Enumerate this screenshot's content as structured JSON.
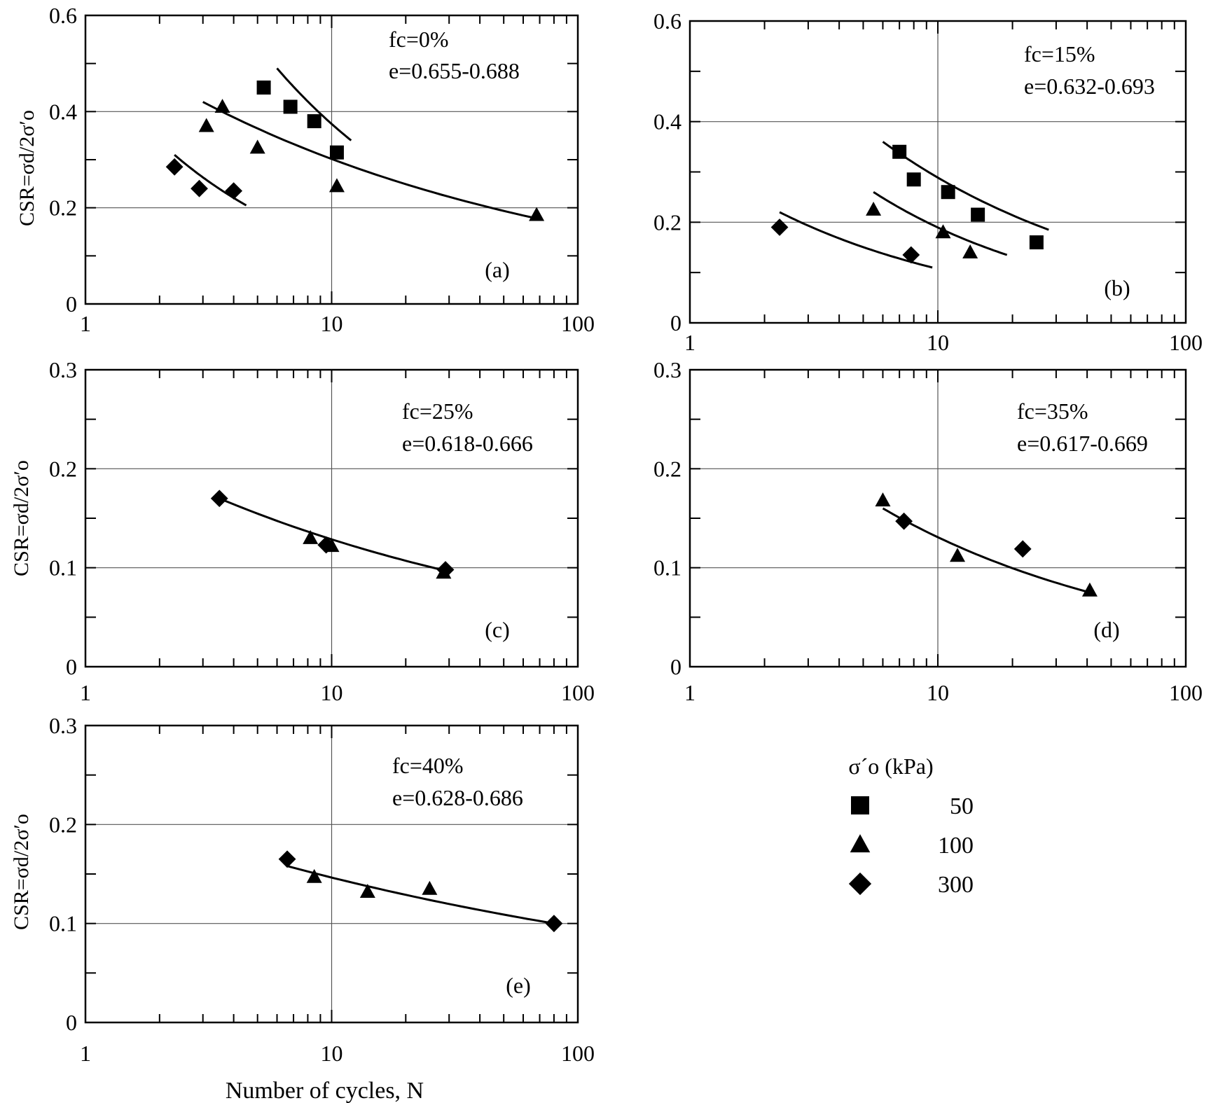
{
  "chart_data": [
    {
      "id": "a",
      "type": "scatter",
      "x_scale": "log",
      "xlim": [
        1,
        100
      ],
      "ylim": [
        0,
        0.6
      ],
      "x_ticks": [
        "1",
        "10",
        "100"
      ],
      "y_ticks": [
        "0",
        "0.2",
        "0.4",
        "0.6"
      ],
      "ylabel": "CSR=σd/2σ′o",
      "annotation": [
        "fc=0%",
        "e=0.655-0.688"
      ],
      "panel_label": "(a)",
      "series": [
        {
          "sigma": "50",
          "marker": "square",
          "points": [
            [
              5.3,
              0.45
            ],
            [
              6.8,
              0.41
            ],
            [
              8.5,
              0.38
            ],
            [
              10.5,
              0.315
            ]
          ],
          "fit": [
            [
              6.0,
              0.49
            ],
            [
              12.0,
              0.34
            ]
          ]
        },
        {
          "sigma": "100",
          "marker": "triangle",
          "points": [
            [
              3.1,
              0.37
            ],
            [
              3.6,
              0.41
            ],
            [
              5.0,
              0.325
            ],
            [
              10.5,
              0.245
            ],
            [
              68,
              0.185
            ]
          ],
          "fit": [
            [
              3.0,
              0.42
            ],
            [
              65,
              0.18
            ]
          ]
        },
        {
          "sigma": "300",
          "marker": "diamond",
          "points": [
            [
              2.3,
              0.285
            ],
            [
              2.9,
              0.24
            ],
            [
              4.0,
              0.235
            ]
          ],
          "fit": [
            [
              2.3,
              0.31
            ],
            [
              4.5,
              0.205
            ]
          ]
        }
      ]
    },
    {
      "id": "b",
      "type": "scatter",
      "x_scale": "log",
      "xlim": [
        1,
        100
      ],
      "ylim": [
        0,
        0.6
      ],
      "x_ticks": [
        "1",
        "10",
        "100"
      ],
      "y_ticks": [
        "0",
        "0.2",
        "0.4",
        "0.6"
      ],
      "ylabel": "",
      "annotation": [
        "fc=15%",
        "e=0.632-0.693"
      ],
      "panel_label": "(b)",
      "series": [
        {
          "sigma": "50",
          "marker": "square",
          "points": [
            [
              7.0,
              0.34
            ],
            [
              8.0,
              0.285
            ],
            [
              11.0,
              0.26
            ],
            [
              14.5,
              0.215
            ],
            [
              25,
              0.16
            ]
          ],
          "fit": [
            [
              6.0,
              0.36
            ],
            [
              28,
              0.185
            ]
          ]
        },
        {
          "sigma": "100",
          "marker": "triangle",
          "points": [
            [
              5.5,
              0.225
            ],
            [
              10.5,
              0.18
            ],
            [
              13.5,
              0.14
            ]
          ],
          "fit": [
            [
              5.5,
              0.26
            ],
            [
              19,
              0.135
            ]
          ]
        },
        {
          "sigma": "300",
          "marker": "diamond",
          "points": [
            [
              2.3,
              0.19
            ],
            [
              7.8,
              0.135
            ]
          ],
          "fit": [
            [
              2.3,
              0.22
            ],
            [
              9.5,
              0.11
            ]
          ]
        }
      ]
    },
    {
      "id": "c",
      "type": "scatter",
      "x_scale": "log",
      "xlim": [
        1,
        100
      ],
      "ylim": [
        0,
        0.3
      ],
      "x_ticks": [
        "1",
        "10",
        "100"
      ],
      "y_ticks": [
        "0",
        "0.1",
        "0.2",
        "0.3"
      ],
      "ylabel": "CSR=σd/2σ′o",
      "annotation": [
        "fc=25%",
        "e=0.618-0.666"
      ],
      "panel_label": "(c)",
      "series": [
        {
          "sigma": "100",
          "marker": "triangle",
          "points": [
            [
              8.2,
              0.13
            ],
            [
              10.0,
              0.122
            ],
            [
              28.5,
              0.095
            ]
          ]
        },
        {
          "sigma": "300",
          "marker": "diamond",
          "points": [
            [
              3.5,
              0.17
            ],
            [
              9.5,
              0.123
            ],
            [
              29,
              0.098
            ]
          ]
        }
      ],
      "fit": [
        [
          3.5,
          0.17
        ],
        [
          29,
          0.097
        ]
      ]
    },
    {
      "id": "d",
      "type": "scatter",
      "x_scale": "log",
      "xlim": [
        1,
        100
      ],
      "ylim": [
        0,
        0.3
      ],
      "x_ticks": [
        "1",
        "10",
        "100"
      ],
      "y_ticks": [
        "0",
        "0.1",
        "0.2",
        "0.3"
      ],
      "ylabel": "",
      "annotation": [
        "fc=35%",
        "e=0.617-0.669"
      ],
      "panel_label": "(d)",
      "series": [
        {
          "sigma": "100",
          "marker": "triangle",
          "points": [
            [
              6.0,
              0.168
            ],
            [
              12.0,
              0.112
            ],
            [
              41,
              0.077
            ]
          ]
        },
        {
          "sigma": "300",
          "marker": "diamond",
          "points": [
            [
              7.3,
              0.147
            ],
            [
              22,
              0.119
            ]
          ]
        }
      ],
      "fit": [
        [
          6.0,
          0.16
        ],
        [
          41,
          0.075
        ]
      ]
    },
    {
      "id": "e",
      "type": "scatter",
      "x_scale": "log",
      "xlim": [
        1,
        100
      ],
      "ylim": [
        0,
        0.3
      ],
      "x_ticks": [
        "1",
        "10",
        "100"
      ],
      "y_ticks": [
        "0",
        "0.1",
        "0.2",
        "0.3"
      ],
      "ylabel": "CSR=σd/2σ′o",
      "xlabel": "Number of cycles, N",
      "annotation": [
        "fc=40%",
        "e=0.628-0.686"
      ],
      "panel_label": "(e)",
      "series": [
        {
          "sigma": "100",
          "marker": "triangle",
          "points": [
            [
              8.5,
              0.147
            ],
            [
              14,
              0.132
            ],
            [
              25,
              0.135
            ]
          ]
        },
        {
          "sigma": "300",
          "marker": "diamond",
          "points": [
            [
              6.6,
              0.165
            ],
            [
              80,
              0.1
            ]
          ]
        }
      ],
      "fit": [
        [
          6.6,
          0.158
        ],
        [
          80,
          0.1
        ]
      ]
    }
  ],
  "legend": {
    "title": "σ´o (kPa)",
    "items": [
      {
        "marker": "square",
        "label": "50"
      },
      {
        "marker": "triangle",
        "label": "100"
      },
      {
        "marker": "diamond",
        "label": "300"
      }
    ]
  },
  "colors": {
    "ink": "#000000",
    "grid": "#555555",
    "background": "#ffffff"
  }
}
